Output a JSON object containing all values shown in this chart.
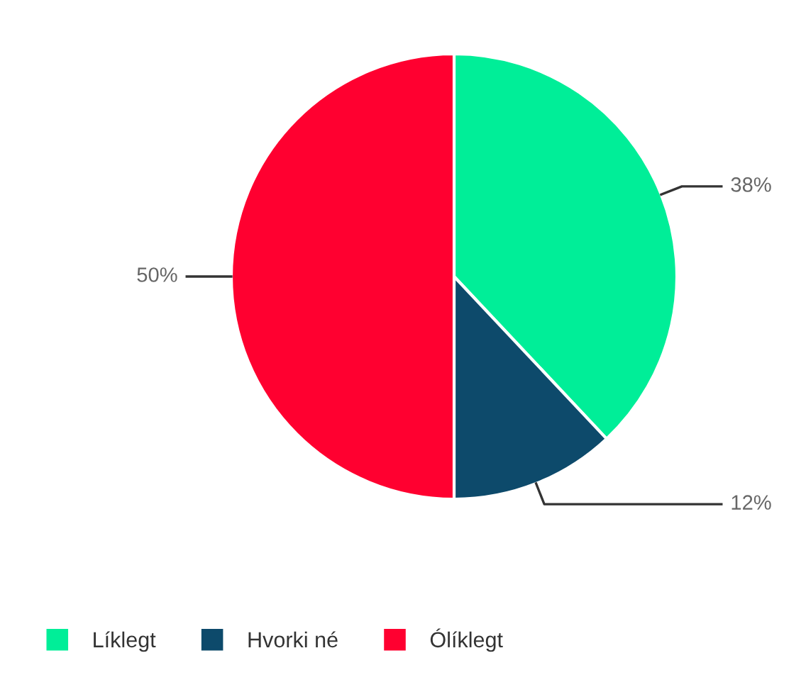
{
  "chart_data": {
    "type": "pie",
    "categories": [
      "Líklegt",
      "Hvorki né",
      "Ólíklegt"
    ],
    "values": [
      38,
      12,
      50
    ],
    "colors": [
      "#00ee98",
      "#0d4a6b",
      "#ff0030"
    ],
    "value_labels": [
      "38%",
      "12%",
      "50%"
    ],
    "legend": "bottom left"
  }
}
